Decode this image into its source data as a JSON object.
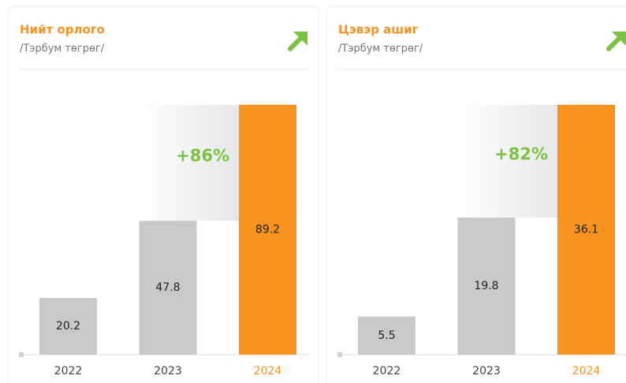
{
  "chart_data": [
    {
      "type": "bar",
      "title": "Нийт орлого",
      "subtitle": "/Тэрбум төгрөг/",
      "annotation": "+86%",
      "categories": [
        "2022",
        "2023",
        "2024"
      ],
      "values": [
        20.2,
        47.8,
        89.2
      ],
      "colors": [
        "#c7c9cb",
        "#c7c9cb",
        "#f7931e"
      ],
      "label_colors": [
        "#444444",
        "#444444",
        "#f7931e"
      ]
    },
    {
      "type": "bar",
      "title": "Цэвэр ашиг",
      "subtitle": "/Тэрбум төгрөг/",
      "annotation": "+82%",
      "categories": [
        "2022",
        "2023",
        "2024"
      ],
      "values": [
        5.5,
        19.8,
        36.1
      ],
      "colors": [
        "#c7c9cb",
        "#c7c9cb",
        "#f7931e"
      ],
      "label_colors": [
        "#444444",
        "#444444",
        "#f7931e"
      ]
    }
  ]
}
